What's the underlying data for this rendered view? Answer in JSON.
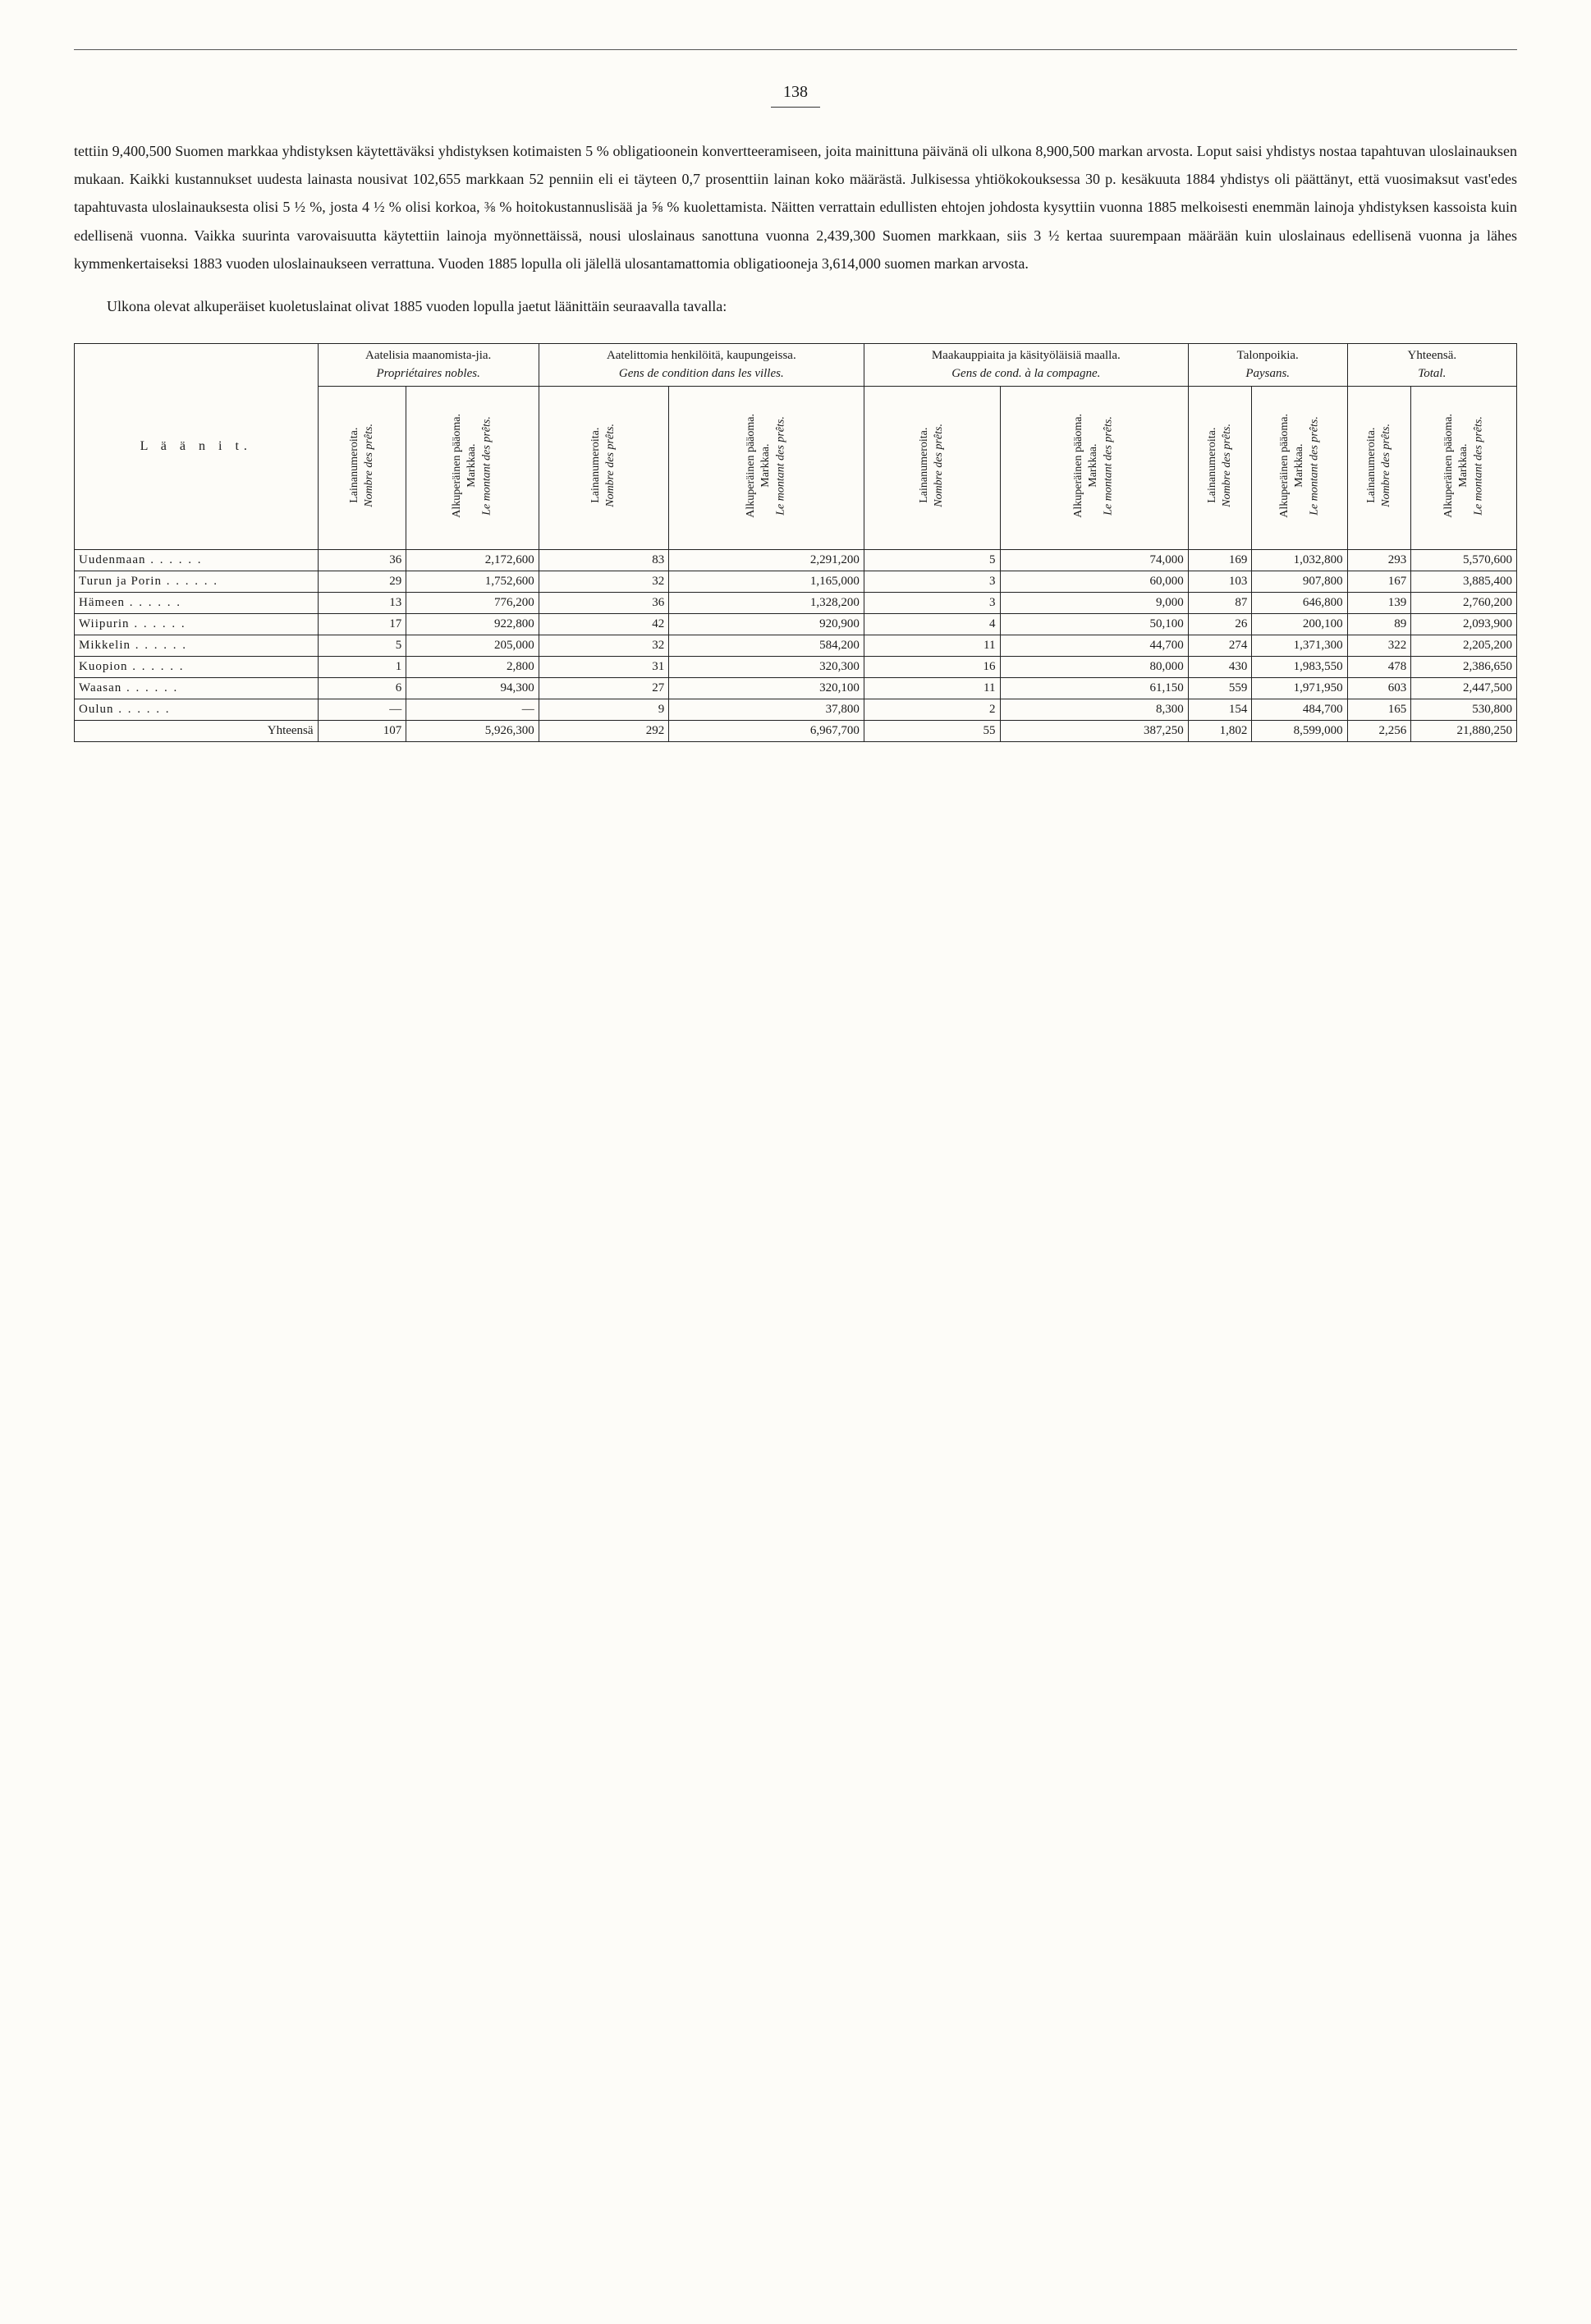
{
  "page_number": "138",
  "paragraph1": "tettiin 9,400,500 Suomen markkaa yhdistyksen käytettäväksi yhdistyksen kotimaisten 5 % obligatioonein konvertteeramiseen, joita mainittuna päivänä oli ulkona 8,900,500 markan arvosta. Loput saisi yhdistys nostaa tapahtuvan uloslainauksen mukaan. Kaikki kustannukset uudesta lainasta nousivat 102,655 markkaan 52 penniin eli ei täyteen 0,7 prosenttiin lainan koko määrästä. Julkisessa yhtiökokouksessa 30 p. kesäkuuta 1884 yhdistys oli päättänyt, että vuosimaksut vast'edes tapahtuvasta uloslainauksesta olisi 5 ½ %, josta 4 ½ % olisi korkoa, ⅜ % hoitokustannuslisää ja ⅝ % kuolettamista. Näitten verrattain edullisten ehtojen johdosta kysyttiin vuonna 1885 melkoisesti enemmän lainoja yhdistyksen kassoista kuin edellisenä vuonna. Vaikka suurinta varovaisuutta käytettiin lainoja myönnettäissä, nousi uloslainaus sanottuna vuonna 2,439,300 Suomen markkaan, siis 3 ½ kertaa suurempaan määrään kuin uloslainaus edellisenä vuonna ja lähes kymmenkertaiseksi 1883 vuoden uloslainaukseen verrattuna. Vuoden 1885 lopulla oli jälellä ulosantamattomia obligatiooneja 3,614,000 suomen markan arvosta.",
  "paragraph2": "Ulkona olevat alkuperäiset kuoletuslainat olivat 1885 vuoden lopulla jaetut läänittäin seuraavalla tavalla:",
  "table": {
    "corner_label": "L ä ä n i t.",
    "groups": [
      {
        "fi": "Aatelisia maanomista-jia.",
        "fr": "Propriétaires nobles."
      },
      {
        "fi": "Aatelittomia henkilöitä, kaupungeissa.",
        "fr": "Gens de condition dans les villes."
      },
      {
        "fi": "Maakauppiaita ja käsityöläisiä maalla.",
        "fr": "Gens de cond. à la compagne."
      },
      {
        "fi": "Talonpoikia.",
        "fr": "Paysans."
      },
      {
        "fi": "Yhteensä.",
        "fr": "Total."
      }
    ],
    "sub_a": "Lainanumeroita.",
    "sub_a_fr": "Nombre des prêts.",
    "sub_b": "Alkuperäinen pääoma.",
    "sub_b_unit": "Markkaa.",
    "sub_b_fr": "Le montant des prêts.",
    "rows": [
      {
        "name": "Uudenmaan",
        "v": [
          "36",
          "2,172,600",
          "83",
          "2,291,200",
          "5",
          "74,000",
          "169",
          "1,032,800",
          "293",
          "5,570,600"
        ]
      },
      {
        "name": "Turun ja Porin",
        "v": [
          "29",
          "1,752,600",
          "32",
          "1,165,000",
          "3",
          "60,000",
          "103",
          "907,800",
          "167",
          "3,885,400"
        ]
      },
      {
        "name": "Hämeen",
        "v": [
          "13",
          "776,200",
          "36",
          "1,328,200",
          "3",
          "9,000",
          "87",
          "646,800",
          "139",
          "2,760,200"
        ]
      },
      {
        "name": "Wiipurin",
        "v": [
          "17",
          "922,800",
          "42",
          "920,900",
          "4",
          "50,100",
          "26",
          "200,100",
          "89",
          "2,093,900"
        ]
      },
      {
        "name": "Mikkelin",
        "v": [
          "5",
          "205,000",
          "32",
          "584,200",
          "11",
          "44,700",
          "274",
          "1,371,300",
          "322",
          "2,205,200"
        ]
      },
      {
        "name": "Kuopion",
        "v": [
          "1",
          "2,800",
          "31",
          "320,300",
          "16",
          "80,000",
          "430",
          "1,983,550",
          "478",
          "2,386,650"
        ]
      },
      {
        "name": "Waasan",
        "v": [
          "6",
          "94,300",
          "27",
          "320,100",
          "11",
          "61,150",
          "559",
          "1,971,950",
          "603",
          "2,447,500"
        ]
      },
      {
        "name": "Oulun",
        "v": [
          "—",
          "—",
          "9",
          "37,800",
          "2",
          "8,300",
          "154",
          "484,700",
          "165",
          "530,800"
        ]
      }
    ],
    "totals_label": "Yhteensä",
    "totals": [
      "107",
      "5,926,300",
      "292",
      "6,967,700",
      "55",
      "387,250",
      "1,802",
      "8,599,000",
      "2,256",
      "21,880,250"
    ]
  }
}
